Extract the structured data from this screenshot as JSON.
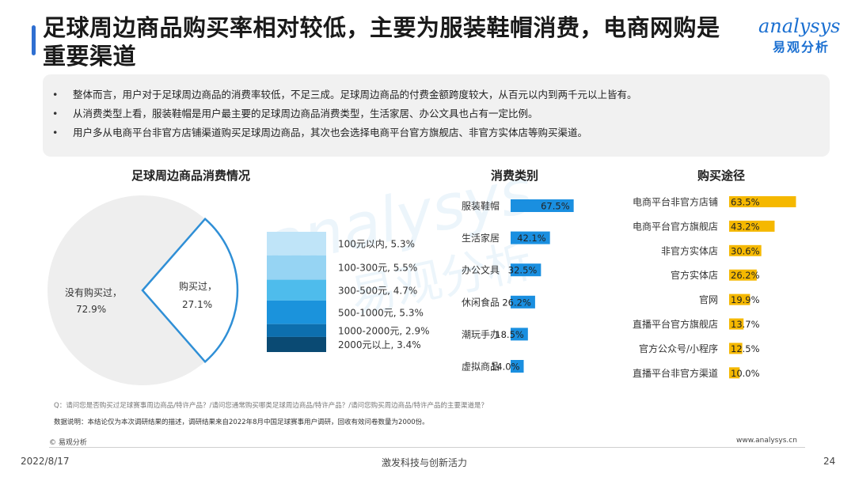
{
  "header": {
    "title": "足球周边商品购买率相对较低，主要为服装鞋帽消费，电商网购是重要渠道",
    "logo_en": "analysys",
    "logo_cn": "易观分析"
  },
  "summary": {
    "points": [
      "整体而言，用户对于足球周边商品的消费率较低，不足三成。足球周边商品的付费金额跨度较大，从百元以内到两千元以上皆有。",
      "从消费类型上看，服装鞋帽是用户最主要的足球周边商品消费类型，生活家居、办公文具也占有一定比例。",
      "用户多从电商平台非官方店铺渠道购买足球周边商品，其次也会选择电商平台官方旗舰店、非官方实体店等购买渠道。"
    ]
  },
  "colors": {
    "accent": "#2f6fd1",
    "category_bar": "#1a8fe0",
    "channel_bar": "#f5b800",
    "pie_gray": "#eeeeee",
    "pie_outline": "#2f8fd6",
    "stack": [
      "#bfe4f8",
      "#96d4f3",
      "#4ebcec",
      "#1b93dc",
      "#0d6fae",
      "#0a4a73"
    ]
  },
  "chart_data": [
    {
      "type": "pie",
      "title": "足球周边商品消费情况",
      "slices": [
        {
          "label": "没有购买过",
          "value": 72.9
        },
        {
          "label": "购买过",
          "value": 27.1
        }
      ],
      "breakdown": {
        "type": "stacked_bar",
        "of": "购买过",
        "items": [
          {
            "label": "100元以内",
            "value": 5.3
          },
          {
            "label": "100-300元",
            "value": 5.5
          },
          {
            "label": "300-500元",
            "value": 4.7
          },
          {
            "label": "500-1000元",
            "value": 5.3
          },
          {
            "label": "1000-2000元",
            "value": 2.9
          },
          {
            "label": "2000元以上",
            "value": 3.4
          }
        ]
      }
    },
    {
      "type": "bar",
      "title": "消费类别",
      "categories": [
        "服装鞋帽",
        "生活家居",
        "办公文具",
        "休闲食品",
        "潮玩手办",
        "虚拟商品"
      ],
      "values": [
        67.5,
        42.1,
        32.5,
        26.2,
        18.5,
        14.0
      ],
      "ylim": [
        0,
        100
      ]
    },
    {
      "type": "bar",
      "title": "购买途径",
      "categories": [
        "电商平台非官方店铺",
        "电商平台官方旗舰店",
        "非官方实体店",
        "官方实体店",
        "官网",
        "直播平台官方旗舰店",
        "官方公众号/小程序",
        "直播平台非官方渠道"
      ],
      "values": [
        63.5,
        43.2,
        30.6,
        26.2,
        19.9,
        13.7,
        12.5,
        10.0
      ],
      "ylim": [
        0,
        100
      ]
    }
  ],
  "footer": {
    "question": "Q：请问您是否购买过足球赛事周边商品/特许产品？/请问您通常购买哪类足球周边商品/特许产品？/请问您购买周边商品/特许产品的主要渠道是？",
    "data_note": "数据说明：本结论仅为本次调研结果的描述，调研结果来自2022年8月中国足球赛事用户调研，回收有效问卷数量为2000份。",
    "copyright": "© 易观分析",
    "website": "www.analysys.cn",
    "date": "2022/8/17",
    "slogan": "激发科技与创新活力",
    "page": "24"
  }
}
